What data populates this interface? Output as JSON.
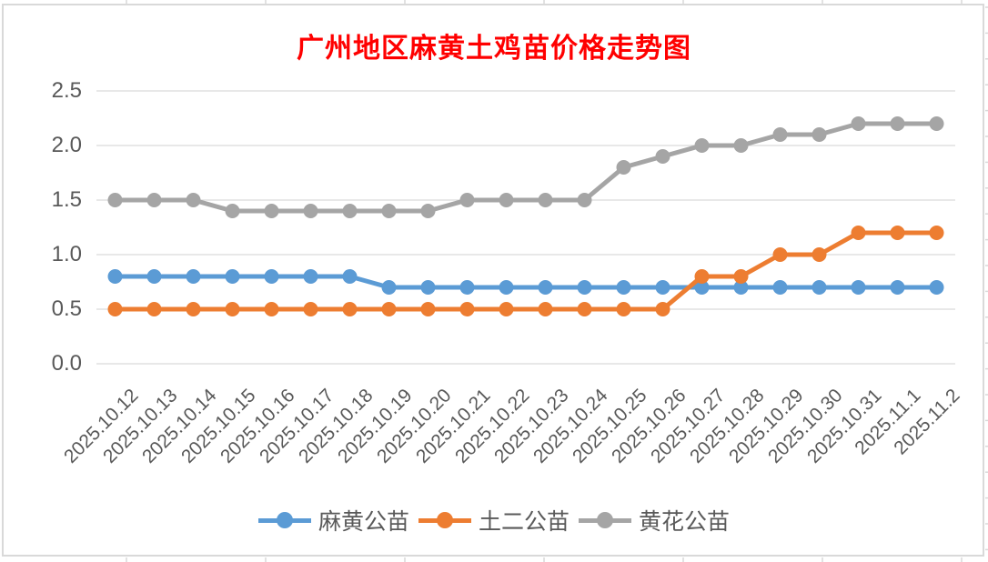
{
  "chart_data": {
    "type": "line",
    "title": "广州地区麻黄土鸡苗价格走势图",
    "title_color": "#ff0000",
    "categories": [
      "2025.10.12",
      "2025.10.13",
      "2025.10.14",
      "2025.10.15",
      "2025.10.16",
      "2025.10.17",
      "2025.10.18",
      "2025.10.19",
      "2025.10.20",
      "2025.10.21",
      "2025.10.22",
      "2025.10.23",
      "2025.10.24",
      "2025.10.25",
      "2025.10.26",
      "2025.10.27",
      "2025.10.28",
      "2025.10.29",
      "2025.10.30",
      "2025.10.31",
      "2025.11.1",
      "2025.11.2"
    ],
    "series": [
      {
        "name": "麻黄公苗",
        "color": "#5B9BD5",
        "values": [
          0.8,
          0.8,
          0.8,
          0.8,
          0.8,
          0.8,
          0.8,
          0.7,
          0.7,
          0.7,
          0.7,
          0.7,
          0.7,
          0.7,
          0.7,
          0.7,
          0.7,
          0.7,
          0.7,
          0.7,
          0.7,
          0.7
        ]
      },
      {
        "name": "土二公苗",
        "color": "#ED7D31",
        "values": [
          0.5,
          0.5,
          0.5,
          0.5,
          0.5,
          0.5,
          0.5,
          0.5,
          0.5,
          0.5,
          0.5,
          0.5,
          0.5,
          0.5,
          0.5,
          0.8,
          0.8,
          1.0,
          1.0,
          1.2,
          1.2,
          1.2
        ]
      },
      {
        "name": "黄花公苗",
        "color": "#A5A5A5",
        "values": [
          1.5,
          1.5,
          1.5,
          1.4,
          1.4,
          1.4,
          1.4,
          1.4,
          1.4,
          1.5,
          1.5,
          1.5,
          1.5,
          1.8,
          1.9,
          2.0,
          2.0,
          2.1,
          2.1,
          2.2,
          2.2,
          2.2
        ]
      }
    ],
    "y_ticks": [
      "0.0",
      "0.5",
      "1.0",
      "1.5",
      "2.0",
      "2.5"
    ],
    "ylim": [
      0,
      2.5
    ],
    "xlabel": "",
    "ylabel": "",
    "grid": "horizontal",
    "gridline_color": "#D9D9D9",
    "axis_label_color": "#595959",
    "legend_position": "bottom"
  }
}
